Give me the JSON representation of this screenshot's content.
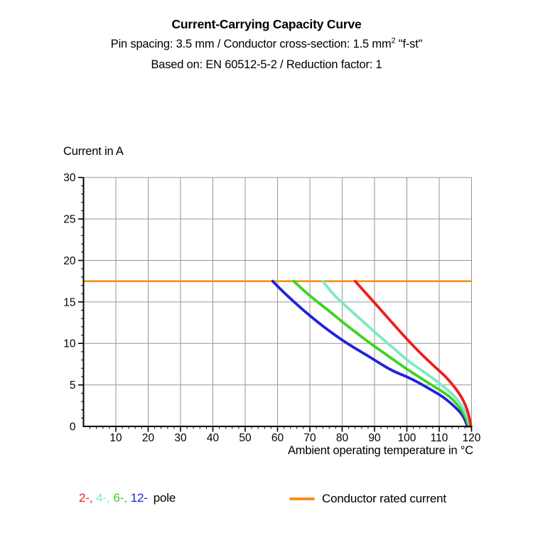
{
  "header": {
    "title": "Current-Carrying Capacity Curve",
    "subtitle_pre": "Pin spacing: 3.5 mm / Conductor cross-section: 1.5 mm",
    "subtitle_sup": "2",
    "subtitle_post": " \"f-st\"",
    "basis": "Based on: EN 60512-5-2 / Reduction factor: 1"
  },
  "chart_data": {
    "type": "line",
    "title": "Current-Carrying Capacity Curve",
    "ylabel": "Current in A",
    "xlabel": "Ambient operating temperature in °C",
    "xlim": [
      0,
      120
    ],
    "ylim": [
      0,
      30
    ],
    "x_ticks": [
      10,
      20,
      30,
      40,
      50,
      60,
      70,
      80,
      90,
      100,
      110,
      120
    ],
    "y_ticks": [
      0,
      5,
      10,
      15,
      20,
      25,
      30
    ],
    "x_minor_step": 2,
    "y_minor_step": 1,
    "grid": true,
    "grid_color": "#969696",
    "axis_color": "#000000",
    "rated_current": {
      "label": "Conductor rated current",
      "value": 17.5,
      "color": "#f98f1e"
    },
    "series": [
      {
        "name": "12-pole",
        "color": "#2121dd",
        "points": [
          [
            58.5,
            17.5
          ],
          [
            61,
            16.5
          ],
          [
            64,
            15.4
          ],
          [
            68,
            14.0
          ],
          [
            72,
            12.7
          ],
          [
            76,
            11.5
          ],
          [
            80,
            10.4
          ],
          [
            84,
            9.4
          ],
          [
            88,
            8.5
          ],
          [
            92,
            7.5
          ],
          [
            96,
            6.6
          ],
          [
            100,
            6.0
          ],
          [
            104,
            5.2
          ],
          [
            108,
            4.3
          ],
          [
            111,
            3.6
          ],
          [
            113,
            3.0
          ],
          [
            115,
            2.3
          ],
          [
            117,
            1.5
          ],
          [
            118.2,
            0.6
          ],
          [
            118.7,
            0
          ]
        ]
      },
      {
        "name": "6-pole",
        "color": "#3cd41c",
        "points": [
          [
            65,
            17.5
          ],
          [
            68,
            16.4
          ],
          [
            72,
            15.1
          ],
          [
            76,
            13.9
          ],
          [
            80,
            12.6
          ],
          [
            84,
            11.4
          ],
          [
            88,
            10.2
          ],
          [
            92,
            9.1
          ],
          [
            96,
            8.0
          ],
          [
            100,
            6.9
          ],
          [
            104,
            5.9
          ],
          [
            108,
            4.9
          ],
          [
            111,
            4.2
          ],
          [
            113.5,
            3.5
          ],
          [
            115.5,
            2.7
          ],
          [
            117.2,
            1.8
          ],
          [
            118.5,
            0.9
          ],
          [
            119.1,
            0
          ]
        ]
      },
      {
        "name": "4-pole",
        "color": "#7de9c4",
        "points": [
          [
            74,
            17.5
          ],
          [
            77,
            16.0
          ],
          [
            80,
            14.9
          ],
          [
            84,
            13.5
          ],
          [
            88,
            12.1
          ],
          [
            92,
            10.7
          ],
          [
            96,
            9.4
          ],
          [
            100,
            8.0
          ],
          [
            104,
            6.9
          ],
          [
            108,
            5.8
          ],
          [
            111,
            4.9
          ],
          [
            113.5,
            4.1
          ],
          [
            115.5,
            3.3
          ],
          [
            117,
            2.5
          ],
          [
            118.3,
            1.5
          ],
          [
            119.2,
            0.6
          ],
          [
            119.5,
            0
          ]
        ]
      },
      {
        "name": "2-pole",
        "color": "#f11c1c",
        "points": [
          [
            84,
            17.5
          ],
          [
            87,
            16.2
          ],
          [
            90,
            14.9
          ],
          [
            95,
            12.7
          ],
          [
            100,
            10.5
          ],
          [
            105,
            8.5
          ],
          [
            110,
            6.7
          ],
          [
            112,
            6.0
          ],
          [
            114,
            5.1
          ],
          [
            116,
            4.1
          ],
          [
            117.5,
            3.1
          ],
          [
            118.6,
            2.1
          ],
          [
            119.4,
            1.0
          ],
          [
            119.8,
            0
          ]
        ]
      }
    ],
    "legend_position": "bottom"
  },
  "legend": {
    "pole_items": [
      {
        "label": "2-,",
        "color": "#f11c1c"
      },
      {
        "label": "4-,",
        "color": "#7de9c4"
      },
      {
        "label": "6-,",
        "color": "#3cd41c"
      },
      {
        "label": "12-",
        "color": "#2121dd"
      }
    ],
    "pole_suffix": "pole",
    "rated_label": "Conductor rated current",
    "rated_color": "#f98f1e"
  }
}
